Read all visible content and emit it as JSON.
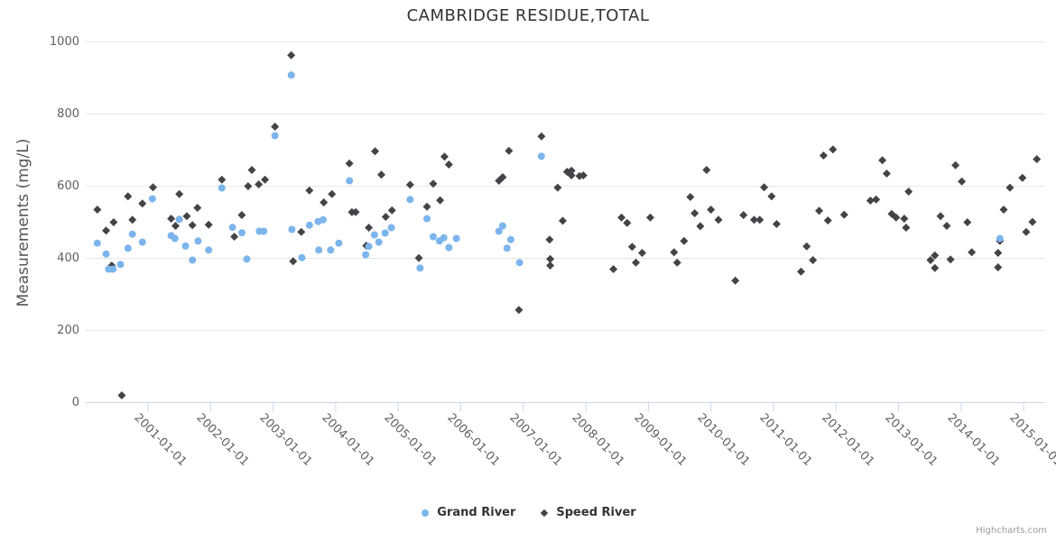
{
  "page": {
    "credits_label": "Highcharts.com"
  },
  "chart_data": {
    "type": "scatter",
    "title": "CAMBRIDGE RESIDUE,TOTAL",
    "xlabel": "",
    "ylabel": "Measurements (mg/L)",
    "ylim": [
      0,
      1000
    ],
    "yticks": [
      0,
      200,
      400,
      600,
      800,
      1000
    ],
    "xtick_labels": [
      "2001-01-01",
      "2002-01-01",
      "2003-01-01",
      "2004-01-01",
      "2005-01-01",
      "2006-01-01",
      "2007-01-01",
      "2008-01-01",
      "2009-01-01",
      "2010-01-01",
      "2011-01-01",
      "2012-01-01",
      "2013-01-01",
      "2014-01-01",
      "2015-01-01"
    ],
    "xtick_years": [
      2001,
      2002,
      2003,
      2004,
      2005,
      2006,
      2007,
      2008,
      2009,
      2010,
      2011,
      2012,
      2013,
      2014,
      2015
    ],
    "grid": "horizontal",
    "legend_position": "bottom-center",
    "background_color": "#ffffff",
    "grid_color": "#e6e6e6",
    "axis_line_color": "#ccd6eb",
    "label_color": "#606060",
    "series": [
      {
        "name": "Grand River",
        "color": "#7cb5ec",
        "marker": "circle",
        "points": [
          [
            2000.19,
            442
          ],
          [
            2000.33,
            412
          ],
          [
            2000.37,
            370
          ],
          [
            2000.44,
            370
          ],
          [
            2000.56,
            383
          ],
          [
            2000.68,
            428
          ],
          [
            2000.75,
            467
          ],
          [
            2000.91,
            445
          ],
          [
            2001.07,
            565
          ],
          [
            2001.37,
            463
          ],
          [
            2001.43,
            455
          ],
          [
            2001.5,
            508
          ],
          [
            2001.6,
            434
          ],
          [
            2001.71,
            395
          ],
          [
            2001.8,
            448
          ],
          [
            2001.97,
            423
          ],
          [
            2002.18,
            595
          ],
          [
            2002.35,
            486
          ],
          [
            2002.5,
            471
          ],
          [
            2002.58,
            398
          ],
          [
            2002.78,
            475
          ],
          [
            2002.85,
            475
          ],
          [
            2003.03,
            740
          ],
          [
            2003.29,
            908
          ],
          [
            2003.3,
            480
          ],
          [
            2003.46,
            402
          ],
          [
            2003.58,
            492
          ],
          [
            2003.72,
            502
          ],
          [
            2003.73,
            423
          ],
          [
            2003.8,
            507
          ],
          [
            2003.92,
            423
          ],
          [
            2004.05,
            442
          ],
          [
            2004.22,
            615
          ],
          [
            2004.48,
            410
          ],
          [
            2004.53,
            433
          ],
          [
            2004.62,
            465
          ],
          [
            2004.69,
            445
          ],
          [
            2004.79,
            470
          ],
          [
            2004.89,
            485
          ],
          [
            2005.19,
            563
          ],
          [
            2005.35,
            373
          ],
          [
            2005.46,
            510
          ],
          [
            2005.56,
            460
          ],
          [
            2005.66,
            448
          ],
          [
            2005.73,
            457
          ],
          [
            2005.81,
            430
          ],
          [
            2005.93,
            455
          ],
          [
            2006.61,
            475
          ],
          [
            2006.67,
            490
          ],
          [
            2006.74,
            428
          ],
          [
            2006.8,
            452
          ],
          [
            2006.94,
            388
          ],
          [
            2007.29,
            683
          ],
          [
            2014.62,
            455
          ]
        ]
      },
      {
        "name": "Speed River",
        "color": "#434348",
        "marker": "diamond",
        "points": [
          [
            2000.19,
            535
          ],
          [
            2000.33,
            477
          ],
          [
            2000.42,
            380
          ],
          [
            2000.45,
            500
          ],
          [
            2000.58,
            20
          ],
          [
            2000.68,
            572
          ],
          [
            2000.75,
            507
          ],
          [
            2000.91,
            552
          ],
          [
            2001.08,
            597
          ],
          [
            2001.37,
            510
          ],
          [
            2001.44,
            490
          ],
          [
            2001.5,
            578
          ],
          [
            2001.62,
            517
          ],
          [
            2001.71,
            492
          ],
          [
            2001.79,
            540
          ],
          [
            2001.97,
            493
          ],
          [
            2002.18,
            618
          ],
          [
            2002.38,
            460
          ],
          [
            2002.5,
            520
          ],
          [
            2002.6,
            600
          ],
          [
            2002.66,
            645
          ],
          [
            2002.77,
            605
          ],
          [
            2002.87,
            618
          ],
          [
            2003.03,
            765
          ],
          [
            2003.29,
            963
          ],
          [
            2003.32,
            392
          ],
          [
            2003.45,
            473
          ],
          [
            2003.58,
            588
          ],
          [
            2003.81,
            555
          ],
          [
            2003.94,
            578
          ],
          [
            2004.22,
            663
          ],
          [
            2004.26,
            528
          ],
          [
            2004.32,
            528
          ],
          [
            2004.49,
            435
          ],
          [
            2004.53,
            485
          ],
          [
            2004.63,
            697
          ],
          [
            2004.73,
            632
          ],
          [
            2004.8,
            515
          ],
          [
            2004.9,
            533
          ],
          [
            2005.19,
            604
          ],
          [
            2005.33,
            401
          ],
          [
            2005.46,
            543
          ],
          [
            2005.56,
            607
          ],
          [
            2005.67,
            561
          ],
          [
            2005.74,
            682
          ],
          [
            2005.81,
            660
          ],
          [
            2006.61,
            615
          ],
          [
            2006.67,
            625
          ],
          [
            2006.77,
            698
          ],
          [
            2006.93,
            257
          ],
          [
            2007.29,
            738
          ],
          [
            2007.42,
            452
          ],
          [
            2007.43,
            398
          ],
          [
            2007.43,
            380
          ],
          [
            2007.55,
            596
          ],
          [
            2007.63,
            504
          ],
          [
            2007.7,
            640
          ],
          [
            2007.77,
            643
          ],
          [
            2007.77,
            630
          ],
          [
            2007.9,
            628
          ],
          [
            2007.96,
            630
          ],
          [
            2008.44,
            370
          ],
          [
            2008.57,
            513
          ],
          [
            2008.66,
            498
          ],
          [
            2008.74,
            432
          ],
          [
            2008.8,
            388
          ],
          [
            2008.9,
            415
          ],
          [
            2009.03,
            513
          ],
          [
            2009.41,
            417
          ],
          [
            2009.46,
            388
          ],
          [
            2009.57,
            448
          ],
          [
            2009.67,
            570
          ],
          [
            2009.74,
            525
          ],
          [
            2009.83,
            489
          ],
          [
            2009.93,
            645
          ],
          [
            2010.0,
            535
          ],
          [
            2010.12,
            507
          ],
          [
            2010.39,
            338
          ],
          [
            2010.52,
            520
          ],
          [
            2010.69,
            507
          ],
          [
            2010.78,
            507
          ],
          [
            2010.85,
            597
          ],
          [
            2010.97,
            572
          ],
          [
            2011.05,
            495
          ],
          [
            2011.44,
            363
          ],
          [
            2011.53,
            433
          ],
          [
            2011.63,
            395
          ],
          [
            2011.73,
            532
          ],
          [
            2011.8,
            685
          ],
          [
            2011.87,
            505
          ],
          [
            2011.95,
            702
          ],
          [
            2012.13,
            521
          ],
          [
            2012.55,
            560
          ],
          [
            2012.64,
            563
          ],
          [
            2012.74,
            672
          ],
          [
            2012.81,
            635
          ],
          [
            2012.89,
            523
          ],
          [
            2012.96,
            513
          ],
          [
            2013.09,
            510
          ],
          [
            2013.12,
            485
          ],
          [
            2013.16,
            585
          ],
          [
            2013.51,
            395
          ],
          [
            2013.58,
            408
          ],
          [
            2013.58,
            373
          ],
          [
            2013.67,
            517
          ],
          [
            2013.77,
            490
          ],
          [
            2013.83,
            397
          ],
          [
            2013.91,
            658
          ],
          [
            2014.01,
            613
          ],
          [
            2014.1,
            500
          ],
          [
            2014.17,
            417
          ],
          [
            2014.59,
            415
          ],
          [
            2014.59,
            375
          ],
          [
            2014.62,
            448
          ],
          [
            2014.68,
            535
          ],
          [
            2014.78,
            596
          ],
          [
            2014.98,
            623
          ],
          [
            2015.04,
            473
          ],
          [
            2015.14,
            501
          ],
          [
            2015.21,
            675
          ]
        ]
      }
    ]
  }
}
